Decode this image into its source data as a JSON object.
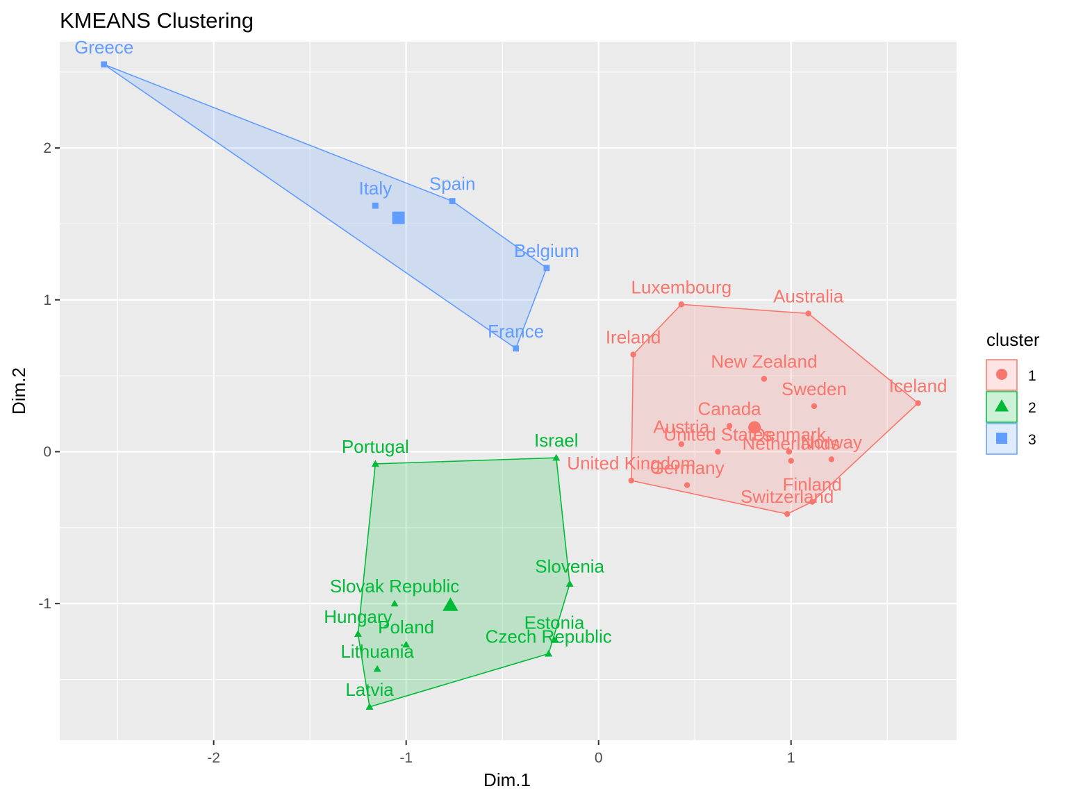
{
  "chart_data": {
    "type": "scatter",
    "title": "KMEANS Clustering",
    "xlabel": "Dim.1",
    "ylabel": "Dim.2",
    "xlim": [
      -2.8,
      1.86
    ],
    "ylim": [
      -1.9,
      2.7
    ],
    "xticks": [
      -2,
      -1,
      0,
      1
    ],
    "yticks": [
      -1,
      0,
      1,
      2
    ],
    "grid": true,
    "legend": {
      "title": "cluster",
      "placement": "right",
      "entries": [
        {
          "label": "1",
          "color": "#F8766D",
          "shape": "circle"
        },
        {
          "label": "2",
          "color": "#00BA38",
          "shape": "triangle"
        },
        {
          "label": "3",
          "color": "#619CFF",
          "shape": "square"
        }
      ]
    },
    "series": [
      {
        "name": "1",
        "color": "#F8766D",
        "shape": "circle",
        "hull": [
          "Ireland",
          "Luxembourg",
          "Australia",
          "Iceland",
          "Finland",
          "Switzerland",
          "United Kingdom"
        ],
        "centroid": {
          "x": 0.81,
          "y": 0.16
        },
        "points": [
          {
            "label": "Luxembourg",
            "x": 0.43,
            "y": 0.97
          },
          {
            "label": "Australia",
            "x": 1.09,
            "y": 0.91
          },
          {
            "label": "Ireland",
            "x": 0.18,
            "y": 0.64
          },
          {
            "label": "New Zealand",
            "x": 0.86,
            "y": 0.48
          },
          {
            "label": "Sweden",
            "x": 1.12,
            "y": 0.3
          },
          {
            "label": "Iceland",
            "x": 1.66,
            "y": 0.32
          },
          {
            "label": "Canada",
            "x": 0.68,
            "y": 0.17
          },
          {
            "label": "Austria",
            "x": 0.43,
            "y": 0.05
          },
          {
            "label": "United States",
            "x": 0.62,
            "y": 0.0
          },
          {
            "label": "Denmark",
            "x": 0.99,
            "y": 0.0
          },
          {
            "label": "Netherlands",
            "x": 1.0,
            "y": -0.06
          },
          {
            "label": "Norway",
            "x": 1.21,
            "y": -0.05
          },
          {
            "label": "United Kingdom",
            "x": 0.17,
            "y": -0.19
          },
          {
            "label": "Germany",
            "x": 0.46,
            "y": -0.22
          },
          {
            "label": "Finland",
            "x": 1.11,
            "y": -0.33
          },
          {
            "label": "Switzerland",
            "x": 0.98,
            "y": -0.41
          }
        ]
      },
      {
        "name": "2",
        "color": "#00BA38",
        "shape": "triangle",
        "hull": [
          "Portugal",
          "Israel",
          "Slovenia",
          "Czech Republic",
          "Latvia",
          "Hungary"
        ],
        "centroid": {
          "x": -0.77,
          "y": -1.01
        },
        "points": [
          {
            "label": "Portugal",
            "x": -1.16,
            "y": -0.08
          },
          {
            "label": "Israel",
            "x": -0.22,
            "y": -0.04
          },
          {
            "label": "Slovenia",
            "x": -0.15,
            "y": -0.87
          },
          {
            "label": "Slovak Republic",
            "x": -1.06,
            "y": -1.0
          },
          {
            "label": "Hungary",
            "x": -1.25,
            "y": -1.2
          },
          {
            "label": "Poland",
            "x": -1.0,
            "y": -1.27
          },
          {
            "label": "Estonia",
            "x": -0.23,
            "y": -1.24
          },
          {
            "label": "Czech Republic",
            "x": -0.26,
            "y": -1.33
          },
          {
            "label": "Lithuania",
            "x": -1.15,
            "y": -1.43
          },
          {
            "label": "Latvia",
            "x": -1.19,
            "y": -1.68
          }
        ]
      },
      {
        "name": "3",
        "color": "#619CFF",
        "shape": "square",
        "hull": [
          "Greece",
          "Spain",
          "Belgium",
          "France"
        ],
        "centroid": {
          "x": -1.04,
          "y": 1.54
        },
        "points": [
          {
            "label": "Greece",
            "x": -2.57,
            "y": 2.55
          },
          {
            "label": "Italy",
            "x": -1.16,
            "y": 1.62
          },
          {
            "label": "Spain",
            "x": -0.76,
            "y": 1.65
          },
          {
            "label": "Belgium",
            "x": -0.27,
            "y": 1.21
          },
          {
            "label": "France",
            "x": -0.43,
            "y": 0.68
          }
        ]
      }
    ]
  }
}
